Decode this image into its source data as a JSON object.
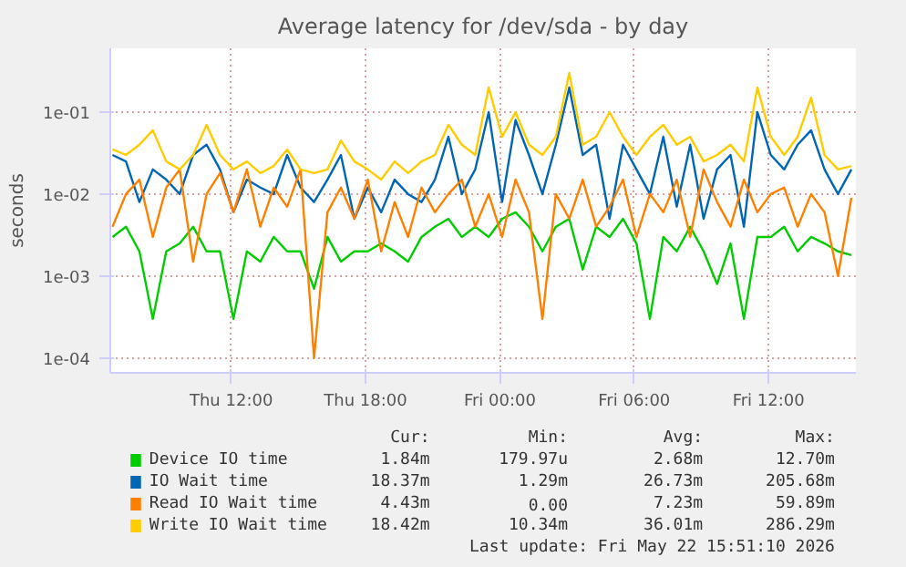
{
  "chart_data": {
    "type": "line",
    "title": "Average latency for /dev/sda - by day",
    "ylabel": "seconds",
    "log": "y",
    "x": [
      "2026-05-21T06:42",
      "2026-05-21T07:18",
      "2026-05-21T07:54",
      "2026-05-21T08:30",
      "2026-05-21T09:06",
      "2026-05-21T09:42",
      "2026-05-21T10:18",
      "2026-05-21T10:54",
      "2026-05-21T11:30",
      "2026-05-21T12:06",
      "2026-05-21T12:42",
      "2026-05-21T13:18",
      "2026-05-21T13:54",
      "2026-05-21T14:30",
      "2026-05-21T15:06",
      "2026-05-21T15:42",
      "2026-05-21T16:18",
      "2026-05-21T16:54",
      "2026-05-21T17:30",
      "2026-05-21T18:06",
      "2026-05-21T18:42",
      "2026-05-21T19:18",
      "2026-05-21T19:54",
      "2026-05-21T20:30",
      "2026-05-21T21:06",
      "2026-05-21T21:42",
      "2026-05-21T22:18",
      "2026-05-21T22:54",
      "2026-05-21T23:30",
      "2026-05-22T00:06",
      "2026-05-22T00:42",
      "2026-05-22T01:18",
      "2026-05-22T01:54",
      "2026-05-22T02:30",
      "2026-05-22T03:06",
      "2026-05-22T03:42",
      "2026-05-22T04:18",
      "2026-05-22T04:54",
      "2026-05-22T05:30",
      "2026-05-22T06:06",
      "2026-05-22T06:42",
      "2026-05-22T07:18",
      "2026-05-22T07:54",
      "2026-05-22T08:30",
      "2026-05-22T09:06",
      "2026-05-22T09:42",
      "2026-05-22T10:18",
      "2026-05-22T10:54",
      "2026-05-22T11:30",
      "2026-05-22T12:06",
      "2026-05-22T12:42",
      "2026-05-22T13:18",
      "2026-05-22T13:54",
      "2026-05-22T14:30",
      "2026-05-22T15:06",
      "2026-05-22T15:42"
    ],
    "xlim": [
      "2026-05-21T06:36",
      "2026-05-22T15:54"
    ],
    "xticks": [
      {
        "value": "2026-05-21T12:00",
        "label": "Thu 12:00"
      },
      {
        "value": "2026-05-21T18:00",
        "label": "Thu 18:00"
      },
      {
        "value": "2026-05-22T00:00",
        "label": "Fri 00:00"
      },
      {
        "value": "2026-05-22T06:00",
        "label": "Fri 06:00"
      },
      {
        "value": "2026-05-22T12:00",
        "label": "Fri 12:00"
      }
    ],
    "ylim": [
      6.6e-05,
      0.6
    ],
    "yticks": [
      {
        "value": 0.0001,
        "label": "1e-04"
      },
      {
        "value": 0.001,
        "label": "1e-03"
      },
      {
        "value": 0.01,
        "label": "1e-02"
      },
      {
        "value": 0.1,
        "label": "1e-01"
      }
    ],
    "grid": true,
    "legend": "bottom",
    "series": [
      {
        "name": "Device IO time",
        "color": "#00cc00",
        "values": [
          0.003,
          0.004,
          0.002,
          0.0003,
          0.002,
          0.0025,
          0.004,
          0.002,
          0.002,
          0.0003,
          0.002,
          0.0015,
          0.003,
          0.002,
          0.002,
          0.0007,
          0.003,
          0.0015,
          0.002,
          0.002,
          0.0025,
          0.002,
          0.0015,
          0.003,
          0.004,
          0.005,
          0.003,
          0.004,
          0.003,
          0.005,
          0.006,
          0.004,
          0.002,
          0.004,
          0.005,
          0.0012,
          0.004,
          0.003,
          0.005,
          0.0025,
          0.0003,
          0.003,
          0.002,
          0.004,
          0.002,
          0.0008,
          0.0025,
          0.0003,
          0.003,
          0.003,
          0.004,
          0.002,
          0.003,
          0.0025,
          0.002,
          0.0018
        ]
      },
      {
        "name": "IO Wait time",
        "color": "#0066b3",
        "values": [
          0.03,
          0.025,
          0.008,
          0.02,
          0.015,
          0.01,
          0.03,
          0.04,
          0.02,
          0.006,
          0.015,
          0.012,
          0.01,
          0.03,
          0.012,
          0.008,
          0.015,
          0.03,
          0.005,
          0.012,
          0.006,
          0.015,
          0.01,
          0.008,
          0.015,
          0.05,
          0.01,
          0.02,
          0.1,
          0.008,
          0.08,
          0.03,
          0.01,
          0.04,
          0.2,
          0.03,
          0.04,
          0.005,
          0.04,
          0.02,
          0.01,
          0.05,
          0.007,
          0.04,
          0.005,
          0.02,
          0.03,
          0.004,
          0.1,
          0.03,
          0.02,
          0.04,
          0.06,
          0.02,
          0.01,
          0.02
        ]
      },
      {
        "name": "Read IO Wait time",
        "color": "#ff8000",
        "values": [
          0.004,
          0.01,
          0.015,
          0.003,
          0.012,
          0.02,
          0.0015,
          0.01,
          0.018,
          0.006,
          0.02,
          0.004,
          0.012,
          0.007,
          0.02,
          0.0001,
          0.006,
          0.012,
          0.005,
          0.015,
          0.002,
          0.008,
          0.003,
          0.012,
          0.006,
          0.01,
          0.015,
          0.004,
          0.01,
          0.003,
          0.015,
          0.006,
          0.0003,
          0.01,
          0.005,
          0.015,
          0.004,
          0.007,
          0.015,
          0.003,
          0.01,
          0.006,
          0.015,
          0.003,
          0.02,
          0.008,
          0.004,
          0.015,
          0.006,
          0.01,
          0.012,
          0.004,
          0.01,
          0.006,
          0.001,
          0.009
        ]
      },
      {
        "name": "Write IO Wait time",
        "color": "#ffcc00",
        "values": [
          0.035,
          0.03,
          0.04,
          0.06,
          0.025,
          0.02,
          0.03,
          0.07,
          0.03,
          0.02,
          0.025,
          0.018,
          0.022,
          0.035,
          0.02,
          0.018,
          0.02,
          0.045,
          0.025,
          0.02,
          0.015,
          0.025,
          0.018,
          0.025,
          0.03,
          0.07,
          0.04,
          0.03,
          0.2,
          0.05,
          0.1,
          0.04,
          0.03,
          0.05,
          0.3,
          0.04,
          0.05,
          0.1,
          0.05,
          0.03,
          0.05,
          0.07,
          0.04,
          0.05,
          0.025,
          0.03,
          0.04,
          0.025,
          0.2,
          0.05,
          0.03,
          0.05,
          0.15,
          0.03,
          0.02,
          0.022
        ]
      }
    ],
    "annotations": [
      "Cur:",
      "Min:",
      "Avg:",
      "Max:",
      "1.84m",
      "179.97u",
      "2.68m",
      "12.70m",
      "18.37m",
      "1.29m",
      "26.73m",
      "205.68m",
      "4.43m",
      "0.00",
      "7.23m",
      "59.89m",
      "18.42m",
      "10.34m",
      "36.01m",
      "286.29m",
      "Last update: Fri May 22 15:51:10 2026"
    ]
  }
}
